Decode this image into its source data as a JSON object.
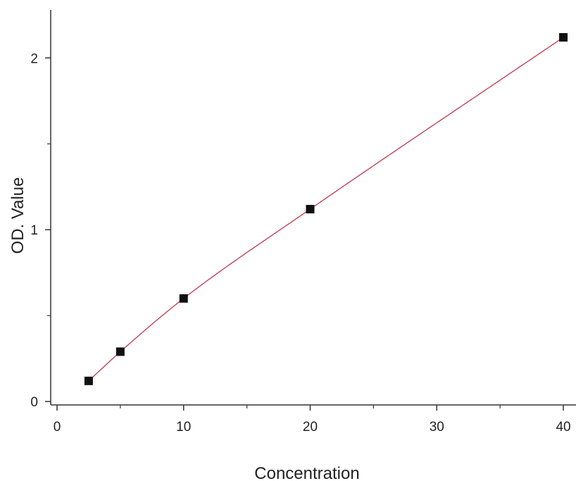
{
  "chart_data": {
    "type": "scatter",
    "title": "",
    "xlabel": "Concentration",
    "ylabel": "OD. Value",
    "xlim": [
      -0.5,
      41
    ],
    "ylim": [
      -0.02,
      2.28
    ],
    "xticks": [
      0,
      10,
      20,
      30,
      40
    ],
    "xtick_labels": [
      "0",
      "10",
      "20",
      "30",
      "40"
    ],
    "xminor_ticks": [
      5,
      15,
      25,
      35
    ],
    "yticks": [
      0,
      1,
      2
    ],
    "ytick_labels": [
      "0",
      "1",
      "2"
    ],
    "yminor_ticks": [
      0.5,
      1.5
    ],
    "grid": false,
    "legend": "none",
    "series": [
      {
        "points": [
          {
            "x": 2.5,
            "y": 0.12
          },
          {
            "x": 5,
            "y": 0.29
          },
          {
            "x": 10,
            "y": 0.6
          },
          {
            "x": 20,
            "y": 1.12
          },
          {
            "x": 40,
            "y": 2.12
          }
        ],
        "marker": "square",
        "marker_color": "#111111",
        "fit_line": true,
        "fit_color": "#c0384b"
      }
    ]
  }
}
